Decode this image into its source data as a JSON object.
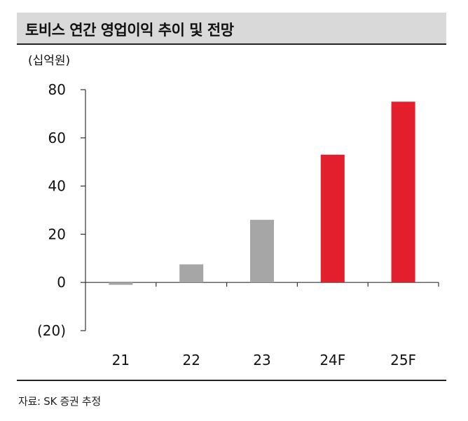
{
  "header": {
    "title": "토비스 연간 영업이익 추이 및 전망"
  },
  "unit": "(십억원)",
  "source": "자료: SK 증권 추정",
  "colors": {
    "actual": "#a6a6a6",
    "forecast": "#e31e2d",
    "axis": "#333333",
    "header_bg": "#d9d9d9"
  },
  "chart_data": {
    "type": "bar",
    "categories": [
      "21",
      "22",
      "23",
      "24F",
      "25F"
    ],
    "values": [
      -1,
      7.5,
      26,
      53,
      75
    ],
    "forecast_flags": [
      false,
      false,
      false,
      true,
      true
    ],
    "title": "토비스 연간 영업이익 추이 및 전망",
    "ylabel": "(십억원)",
    "xlabel": "",
    "ylim": [
      -20,
      80
    ],
    "yticks": [
      80,
      60,
      40,
      20,
      0,
      -20
    ],
    "ytick_labels": [
      "80",
      "60",
      "40",
      "20",
      "0",
      "(20)"
    ],
    "grid": false,
    "legend": "none"
  }
}
